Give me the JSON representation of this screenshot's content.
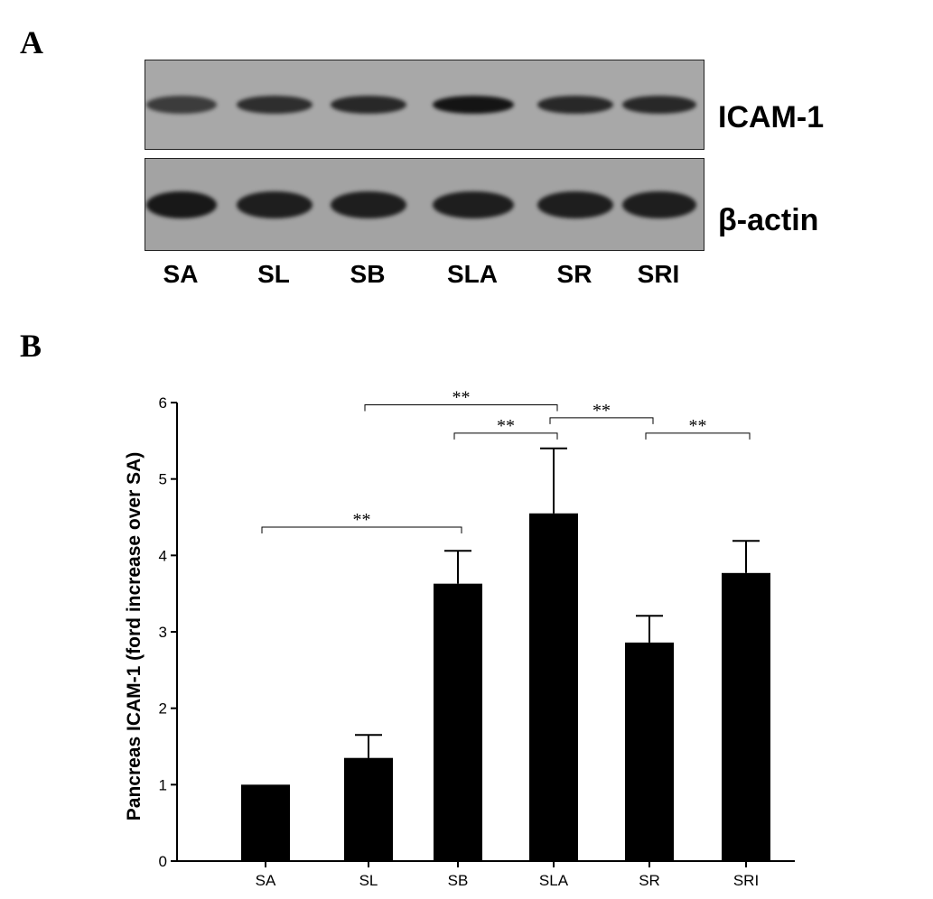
{
  "panels": {
    "a_label": "A",
    "b_label": "B"
  },
  "blot": {
    "rows": [
      {
        "label": "ICAM-1",
        "band_intensities": [
          0.55,
          0.7,
          0.75,
          0.95,
          0.75,
          0.75
        ]
      },
      {
        "label": "β-actin",
        "band_intensities": [
          0.9,
          0.85,
          0.85,
          0.85,
          0.85,
          0.85
        ]
      }
    ],
    "lanes": [
      "SA",
      "SL",
      "SB",
      "SLA",
      "SR",
      "SRI"
    ]
  },
  "chart_data": {
    "type": "bar",
    "title": "",
    "xlabel": "",
    "ylabel": "Pancreas ICAM-1 (ford increase over SA)",
    "categories": [
      "SA",
      "SL",
      "SB",
      "SLA",
      "SR",
      "SRI"
    ],
    "values": [
      1.0,
      1.35,
      3.63,
      4.55,
      2.86,
      3.77
    ],
    "errors": [
      0,
      0.3,
      0.43,
      0.85,
      0.35,
      0.42
    ],
    "ylim": [
      0,
      6
    ],
    "yticks": [
      0,
      1,
      2,
      3,
      4,
      5,
      6
    ],
    "bar_color": "#000000",
    "grid": false,
    "legend": "none",
    "significance": [
      {
        "from": "SA",
        "to": "SB",
        "label": "**",
        "y": 4.37
      },
      {
        "from": "SL",
        "to": "SLA",
        "label": "**",
        "y": 5.97
      },
      {
        "from": "SB",
        "to": "SLA",
        "label": "**",
        "y": 5.6
      },
      {
        "from": "SLA",
        "to": "SR",
        "label": "**",
        "y": 5.8
      },
      {
        "from": "SR",
        "to": "SRI",
        "label": "**",
        "y": 5.6
      }
    ]
  }
}
